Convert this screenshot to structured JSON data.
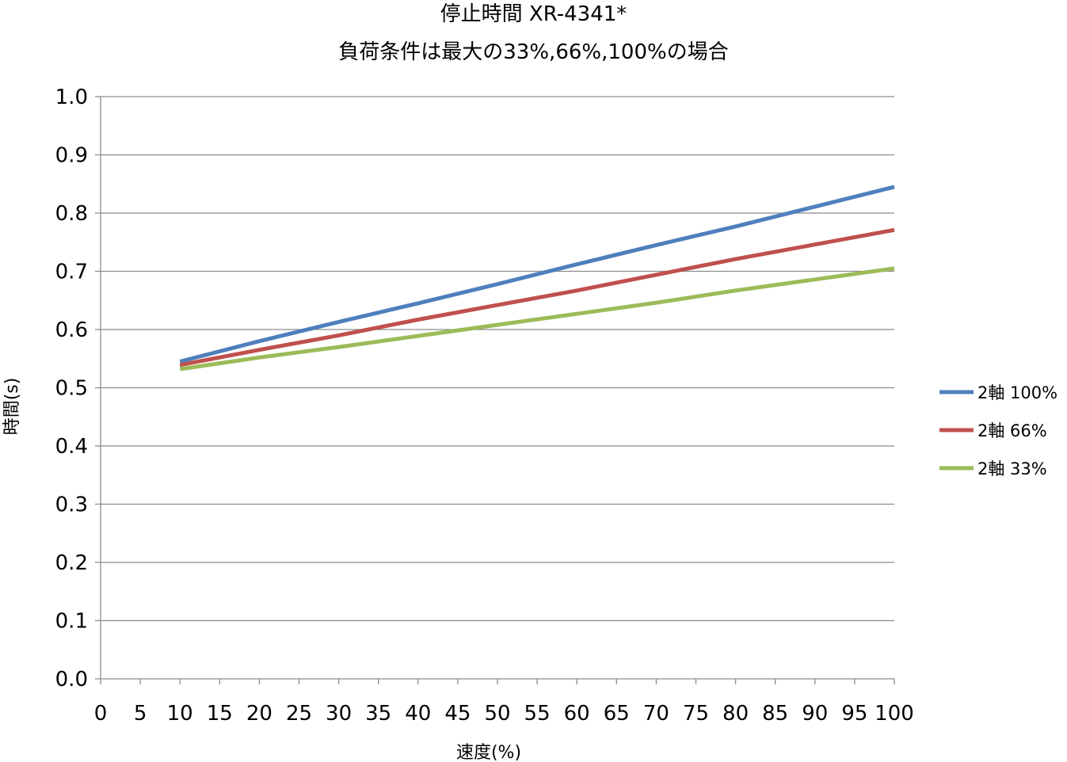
{
  "chart_data": {
    "type": "line",
    "title": "停止時間 XR-4341*",
    "subtitle": "負荷条件は最大の33%,66%,100%の場合",
    "xlabel": "速度(%)",
    "ylabel": "時間(s)",
    "x_ticks": [
      "0",
      "5",
      "10",
      "15",
      "20",
      "25",
      "30",
      "35",
      "40",
      "45",
      "50",
      "55",
      "60",
      "65",
      "70",
      "75",
      "80",
      "85",
      "90",
      "95",
      "100"
    ],
    "y_ticks": [
      "0.0",
      "0.1",
      "0.2",
      "0.3",
      "0.4",
      "0.5",
      "0.6",
      "0.7",
      "0.8",
      "0.9",
      "1.0"
    ],
    "xlim": [
      0,
      100
    ],
    "ylim": [
      0,
      1.0
    ],
    "grid": "horizontal",
    "legend_position": "right",
    "x": [
      10,
      20,
      30,
      40,
      50,
      60,
      70,
      80,
      90,
      100
    ],
    "series": [
      {
        "name": "2軸 100%",
        "color": "#4F7FBC",
        "values": [
          0.545,
          0.58,
          0.613,
          0.645,
          0.678,
          0.712,
          0.745,
          0.777,
          0.811,
          0.845
        ]
      },
      {
        "name": "2軸 66%",
        "color": "#C0504D",
        "values": [
          0.539,
          0.565,
          0.59,
          0.617,
          0.642,
          0.667,
          0.694,
          0.721,
          0.746,
          0.771
        ]
      },
      {
        "name": "2軸 33%",
        "color": "#9BBB59",
        "values": [
          0.532,
          0.552,
          0.57,
          0.589,
          0.608,
          0.627,
          0.646,
          0.667,
          0.686,
          0.705
        ]
      }
    ]
  }
}
